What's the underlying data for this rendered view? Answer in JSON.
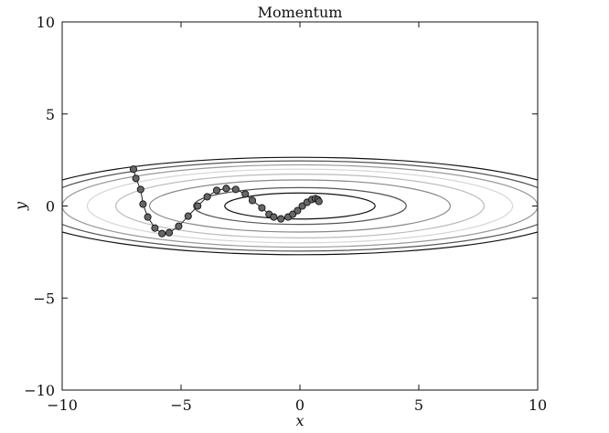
{
  "chart_data": {
    "type": "line",
    "title": "Momentum",
    "xlabel": "x",
    "ylabel": "y",
    "xlim": [
      -10,
      10
    ],
    "ylim": [
      -10,
      10
    ],
    "xticks": [
      -10,
      -5,
      0,
      5,
      10
    ],
    "yticks": [
      -10,
      -5,
      0,
      5,
      10
    ],
    "xtick_labels": [
      "−10",
      "−5",
      "0",
      "5",
      "10"
    ],
    "ytick_labels": [
      "−10",
      "−5",
      "0",
      "5",
      "10"
    ],
    "grid": false,
    "legend": "none",
    "contours": {
      "function": "f(x, y) = x^2/20 + y^2",
      "levels": [
        0.5,
        1.0,
        2.0,
        3.0,
        4.0,
        5.0,
        6.0,
        7.0
      ],
      "colors": [
        "#111111",
        "#555555",
        "#888888",
        "#bbbbbb",
        "#d6d6d6",
        "#999999",
        "#555555",
        "#111111"
      ]
    },
    "series": [
      {
        "marker": "circle",
        "color": "#666666",
        "points": [
          [
            -7.0,
            2.0
          ],
          [
            -6.9,
            1.5
          ],
          [
            -6.7,
            0.9
          ],
          [
            -6.6,
            0.1
          ],
          [
            -6.4,
            -0.6
          ],
          [
            -6.1,
            -1.2
          ],
          [
            -5.8,
            -1.5
          ],
          [
            -5.5,
            -1.45
          ],
          [
            -5.1,
            -1.1
          ],
          [
            -4.7,
            -0.55
          ],
          [
            -4.3,
            0.0
          ],
          [
            -3.9,
            0.5
          ],
          [
            -3.5,
            0.85
          ],
          [
            -3.1,
            0.95
          ],
          [
            -2.7,
            0.9
          ],
          [
            -2.3,
            0.65
          ],
          [
            -2.0,
            0.3
          ],
          [
            -1.6,
            -0.1
          ],
          [
            -1.3,
            -0.45
          ],
          [
            -1.1,
            -0.6
          ],
          [
            -0.8,
            -0.7
          ],
          [
            -0.5,
            -0.6
          ],
          [
            -0.3,
            -0.45
          ],
          [
            -0.1,
            -0.25
          ],
          [
            0.1,
            0.0
          ],
          [
            0.3,
            0.2
          ],
          [
            0.5,
            0.35
          ],
          [
            0.65,
            0.4
          ],
          [
            0.75,
            0.35
          ],
          [
            0.8,
            0.25
          ]
        ]
      }
    ]
  }
}
